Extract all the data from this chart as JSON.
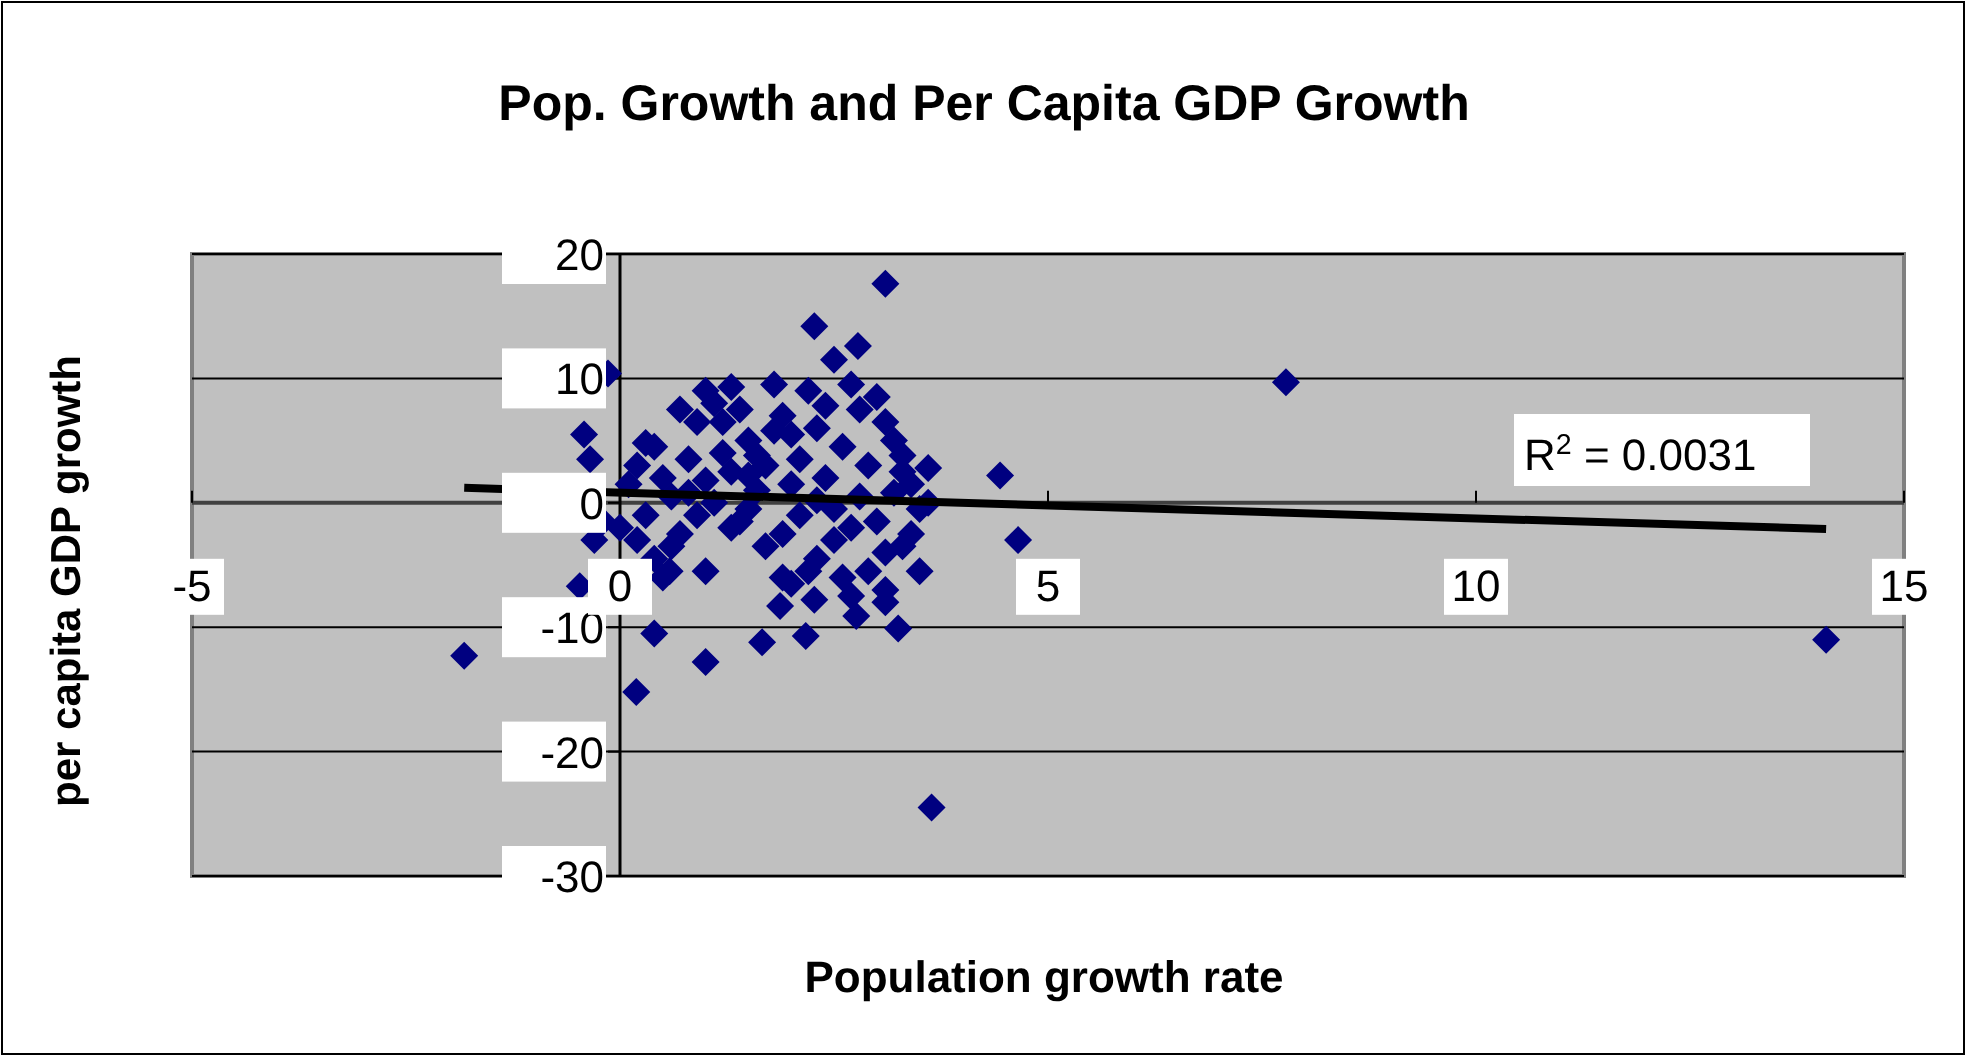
{
  "chart_data": {
    "type": "scatter",
    "title": "Pop. Growth and Per Capita GDP Growth",
    "xlabel": "Population growth rate",
    "ylabel": "per capita GDP growth",
    "xlim": [
      -5,
      15
    ],
    "xticks": [
      -5,
      0,
      5,
      10,
      15
    ],
    "ylim": [
      -30,
      20
    ],
    "yticks": [
      -30,
      -20,
      -10,
      0,
      10,
      20
    ],
    "grid": "y",
    "marker": "diamond",
    "annotations": [
      "R$^{2}$ = 0.0031"
    ],
    "series": [
      {
        "color": "#000080",
        "x": [
          -1.82,
          7.78,
          14.09,
          3.64,
          -0.14,
          3.1,
          2.27,
          2.78,
          4.44,
          4.65,
          -0.42,
          -0.35,
          -0.47,
          0.4,
          0.19,
          1.0,
          1.66,
          2.17,
          3.25,
          2.76,
          1.87,
          2.27,
          0.58,
          3.1,
          0.1,
          0.2,
          0.3,
          0.4,
          0.5,
          0.6,
          0.7,
          0.8,
          0.9,
          1.0,
          1.1,
          1.2,
          1.3,
          1.4,
          1.5,
          1.6,
          1.7,
          1.8,
          1.9,
          2.0,
          2.1,
          2.2,
          2.3,
          2.4,
          2.5,
          2.6,
          2.7,
          2.8,
          2.9,
          3.0,
          3.1,
          3.2,
          3.3,
          3.4,
          3.5,
          3.6,
          0.2,
          0.4,
          0.6,
          0.9,
          1.1,
          1.3,
          1.5,
          1.7,
          1.9,
          2.1,
          2.3,
          2.5,
          2.7,
          2.9,
          3.1,
          3.3,
          3.5,
          2.2,
          2.6,
          0.0,
          -0.2,
          -0.3,
          0.3,
          0.8,
          1.0,
          1.2,
          1.4,
          1.6,
          1.8,
          2.0,
          2.0,
          2.4,
          2.8,
          3.0,
          3.2,
          3.4,
          1.0,
          0.5,
          2.5,
          1.3,
          0.7,
          3.3,
          3.6,
          2.3,
          1.5,
          1.9,
          2.7,
          3.1
        ],
        "values": [
          -12.3,
          9.7,
          -11.0,
          -24.5,
          10.4,
          17.6,
          14.2,
          12.6,
          2.2,
          -3.0,
          5.5,
          3.5,
          -6.7,
          -10.5,
          -15.2,
          -12.8,
          -11.2,
          -10.7,
          -10.1,
          -9.1,
          -8.3,
          -7.8,
          -5.5,
          -7.0,
          1.5,
          3.0,
          -1.0,
          4.5,
          2.0,
          0.5,
          -2.5,
          3.5,
          6.5,
          9.0,
          8.0,
          4.0,
          2.5,
          -1.5,
          5.0,
          1.0,
          3.0,
          9.5,
          7.0,
          5.5,
          3.5,
          9.0,
          6.0,
          2.0,
          -0.5,
          4.5,
          9.5,
          7.5,
          3.0,
          8.5,
          6.5,
          5.0,
          2.5,
          1.5,
          -0.5,
          0.0,
          -3.0,
          -4.5,
          -3.5,
          -1.0,
          0.0,
          -2.0,
          -0.5,
          -3.5,
          -2.5,
          -1.0,
          -4.5,
          -3.0,
          -2.0,
          -5.5,
          -4.0,
          -3.5,
          -5.5,
          -5.5,
          -6.0,
          -2.0,
          -1.5,
          -3.0,
          4.8,
          0.8,
          1.8,
          6.5,
          7.5,
          3.8,
          5.8,
          1.5,
          -6.5,
          7.8,
          0.5,
          -1.5,
          0.8,
          -2.5,
          -5.5,
          -6.0,
          11.5,
          9.3,
          7.5,
          3.8,
          2.8,
          0.2,
          2.2,
          -6.0,
          -7.5,
          -8.0
        ]
      },
      {
        "type": "line",
        "color": "#000000",
        "x": [
          -1.82,
          14.09
        ],
        "values": [
          1.2,
          -2.1
        ],
        "marker": "none"
      }
    ]
  }
}
